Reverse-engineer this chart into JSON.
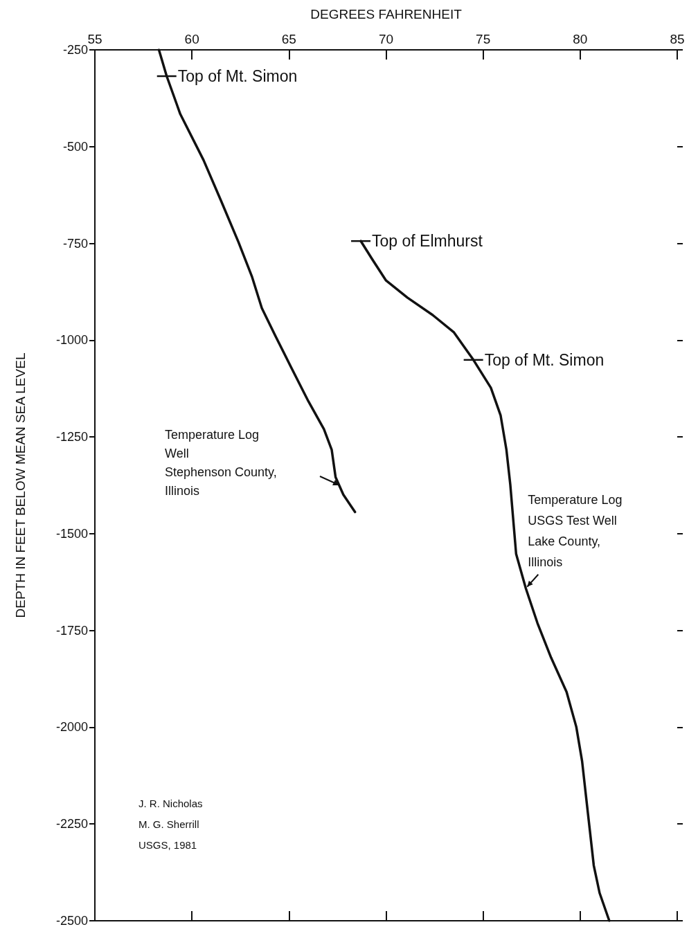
{
  "chart_data": {
    "type": "line",
    "xlabel": "DEGREES FAHRENHEIT",
    "ylabel": "DEPTH IN FEET BELOW MEAN SEA LEVEL",
    "xlim": [
      55,
      85
    ],
    "xticks": [
      55,
      60,
      65,
      70,
      75,
      80,
      85
    ],
    "ylim": [
      -2500,
      -250
    ],
    "yticks": [
      -2500,
      -2250,
      -2000,
      -1750,
      -1500,
      -1250,
      -1000,
      -750,
      -500,
      -250
    ],
    "grid": false,
    "marker": "none",
    "line_style": "solid",
    "series": [
      {
        "color": "#111111",
        "x": [
          58.3,
          58.7,
          59.4,
          60.6,
          61.5,
          62.4,
          63.1,
          63.6,
          64.3,
          65.1,
          66.0,
          66.8,
          67.2,
          67.4,
          67.8,
          68.4
        ],
        "values": [
          -250,
          -318,
          -416,
          -535,
          -640,
          -747,
          -837,
          -917,
          -989,
          -1069,
          -1158,
          -1230,
          -1283,
          -1354,
          -1399,
          -1444
        ]
      },
      {
        "color": "#111111",
        "x": [
          68.7,
          69.3,
          70.0,
          71.1,
          72.4,
          73.5,
          74.5,
          75.4,
          75.9,
          76.2,
          76.4,
          76.7,
          77.2,
          77.8,
          78.5,
          79.3,
          79.8,
          80.1,
          80.3,
          80.5,
          80.7,
          81.0,
          81.5
        ],
        "values": [
          -744,
          -792,
          -846,
          -890,
          -935,
          -980,
          -1051,
          -1123,
          -1194,
          -1283,
          -1373,
          -1552,
          -1641,
          -1731,
          -1820,
          -1909,
          -1999,
          -2088,
          -2178,
          -2267,
          -2357,
          -2428,
          -2500
        ]
      }
    ],
    "annotations": [
      {
        "text": "Top of Mt. Simon",
        "x": 58.7,
        "y": -318
      },
      {
        "text": "Top of Elmhurst",
        "x": 68.7,
        "y": -744
      },
      {
        "text": "Top of Mt. Simon",
        "x": 74.5,
        "y": -1051
      },
      "Temperature Log\nWell\nStephenson County,\nIllinois",
      {
        "text": "Temperature Log\nUSGS Test Well\nLake County,\nIllinois",
        "x": 77.2,
        "y": -1641
      },
      "J. R. Nicholas\nM. G. Sherrill\nUSGS, 1981"
    ]
  }
}
